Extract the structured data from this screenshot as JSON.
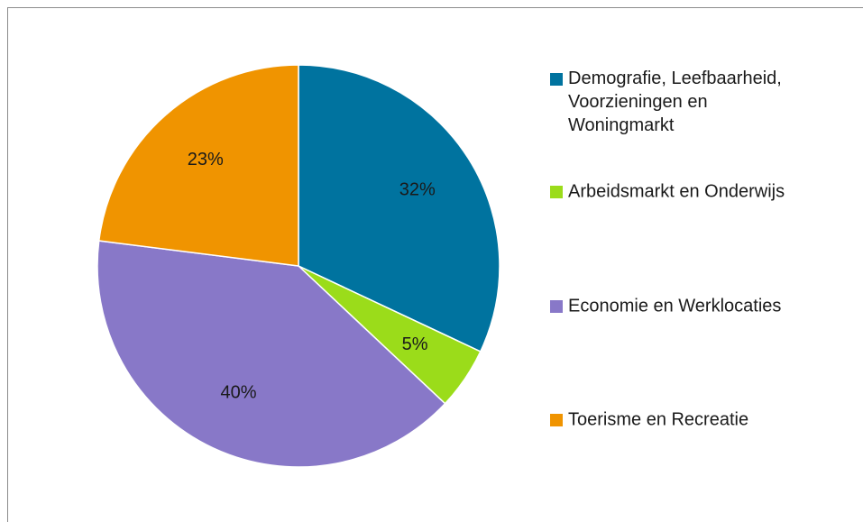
{
  "chart_data": {
    "type": "pie",
    "categories": [
      "Demografie, Leefbaarheid, Voorzieningen en Woningmarkt",
      "Arbeidsmarkt en Onderwijs",
      "Economie en Werklocaties",
      "Toerisme en Recreatie"
    ],
    "values": [
      32,
      5,
      40,
      23
    ],
    "value_labels": [
      "32%",
      "5%",
      "40%",
      "23%"
    ],
    "colors": [
      "#00739f",
      "#9bdc1a",
      "#8878c8",
      "#f09400"
    ],
    "legend": "right"
  }
}
